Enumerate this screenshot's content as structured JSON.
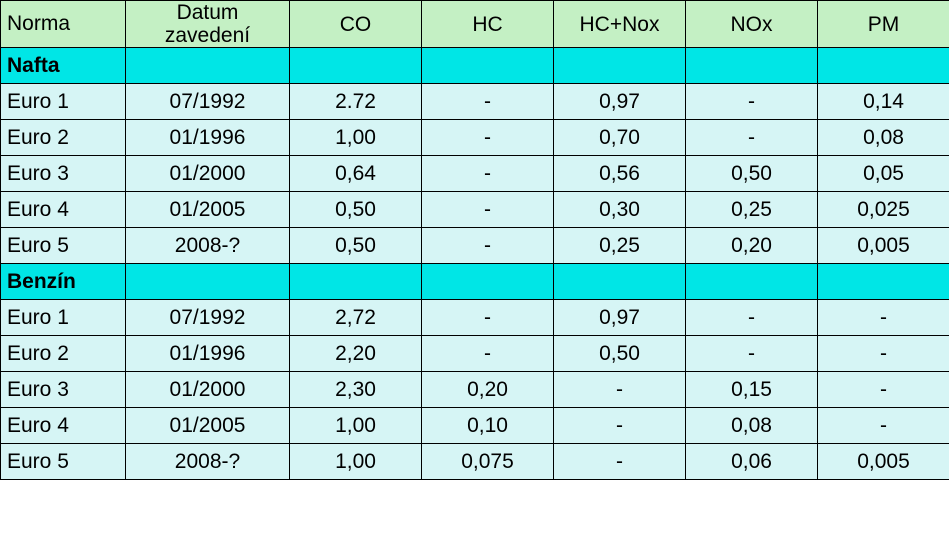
{
  "columns": [
    "Norma",
    "Datum zavedení",
    "CO",
    "HC",
    "HC+Nox",
    "NOx",
    "PM"
  ],
  "colors": {
    "header_bg": "#c4f0c4",
    "section_bg": "#00e6e6",
    "cell_bg": "#d6f5f5",
    "border": "#000000",
    "text": "#000000"
  },
  "font_size_pt": 16,
  "sections": [
    {
      "title": "Nafta",
      "rows": [
        {
          "norma": "Euro 1",
          "datum": "07/1992",
          "co": "2.72",
          "hc": "-",
          "hcnox": "0,97",
          "nox": "-",
          "pm": "0,14"
        },
        {
          "norma": "Euro 2",
          "datum": "01/1996",
          "co": "1,00",
          "hc": "-",
          "hcnox": "0,70",
          "nox": "-",
          "pm": "0,08"
        },
        {
          "norma": "Euro 3",
          "datum": "01/2000",
          "co": "0,64",
          "hc": "-",
          "hcnox": "0,56",
          "nox": "0,50",
          "pm": "0,05"
        },
        {
          "norma": "Euro 4",
          "datum": "01/2005",
          "co": "0,50",
          "hc": "-",
          "hcnox": "0,30",
          "nox": "0,25",
          "pm": "0,025"
        },
        {
          "norma": "Euro 5",
          "datum": "2008-?",
          "co": "0,50",
          "hc": "-",
          "hcnox": "0,25",
          "nox": "0,20",
          "pm": "0,005"
        }
      ]
    },
    {
      "title": "Benzín",
      "rows": [
        {
          "norma": "Euro 1",
          "datum": "07/1992",
          "co": "2,72",
          "hc": "-",
          "hcnox": "0,97",
          "nox": "-",
          "pm": "-"
        },
        {
          "norma": "Euro 2",
          "datum": "01/1996",
          "co": "2,20",
          "hc": "-",
          "hcnox": "0,50",
          "nox": "-",
          "pm": "-"
        },
        {
          "norma": "Euro 3",
          "datum": "01/2000",
          "co": "2,30",
          "hc": "0,20",
          "hcnox": "-",
          "nox": "0,15",
          "pm": "-"
        },
        {
          "norma": "Euro 4",
          "datum": "01/2005",
          "co": "1,00",
          "hc": "0,10",
          "hcnox": "-",
          "nox": "0,08",
          "pm": "-"
        },
        {
          "norma": "Euro 5",
          "datum": "2008-?",
          "co": "1,00",
          "hc": "0,075",
          "hcnox": "-",
          "nox": "0,06",
          "pm": "0,005"
        }
      ]
    }
  ]
}
